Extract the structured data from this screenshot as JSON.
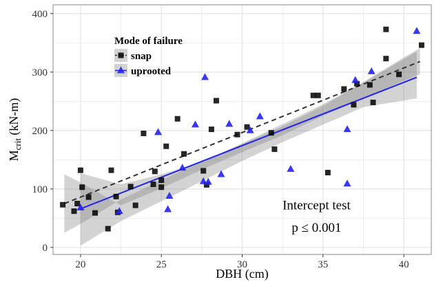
{
  "chart_data": {
    "type": "scatter",
    "xlabel": "DBH (cm)",
    "ylabel": {
      "main": "M",
      "sub": "crit",
      "unit": " (kN-m)"
    },
    "xlim": [
      18.3,
      41.7
    ],
    "ylim": [
      -12,
      415
    ],
    "x_ticks": [
      20,
      25,
      30,
      35,
      40
    ],
    "y_ticks": [
      0,
      100,
      200,
      300,
      400
    ],
    "grid": true,
    "legend": {
      "title": "Mode of failure",
      "placement": "top-left",
      "entries": [
        {
          "key": "snap",
          "label": "snap"
        },
        {
          "key": "uprooted",
          "label": "uprooted"
        }
      ]
    },
    "annotations": [
      {
        "text": "Intercept test",
        "x": 34.6,
        "y": 65
      },
      {
        "text": "p ≤ 0.001",
        "x": 34.6,
        "y": 27
      }
    ],
    "colors": {
      "snap": "#000000",
      "uprooted": "#2222ee",
      "band": "#808080",
      "snap_line": "#333333",
      "uprooted_line": "#2222ee",
      "grid": "#e4e4e4",
      "panel_border": "#8a8a8a"
    },
    "series": [
      {
        "name": "snap",
        "marker": "square",
        "points": [
          [
            18.9,
            73
          ],
          [
            19.6,
            62
          ],
          [
            19.8,
            75
          ],
          [
            20.0,
            132
          ],
          [
            20.1,
            103
          ],
          [
            20.5,
            86
          ],
          [
            20.9,
            59
          ],
          [
            21.7,
            32
          ],
          [
            21.9,
            132
          ],
          [
            22.2,
            87
          ],
          [
            22.3,
            60
          ],
          [
            23.1,
            104
          ],
          [
            23.4,
            72
          ],
          [
            23.9,
            195
          ],
          [
            24.5,
            108
          ],
          [
            24.6,
            130
          ],
          [
            25.0,
            103
          ],
          [
            25.0,
            115
          ],
          [
            25.3,
            173
          ],
          [
            26.0,
            220
          ],
          [
            26.4,
            160
          ],
          [
            27.6,
            131
          ],
          [
            27.8,
            107
          ],
          [
            28.1,
            202
          ],
          [
            28.4,
            251
          ],
          [
            29.7,
            193
          ],
          [
            30.3,
            206
          ],
          [
            31.8,
            196
          ],
          [
            32.0,
            168
          ],
          [
            34.4,
            260
          ],
          [
            34.7,
            260
          ],
          [
            35.3,
            128
          ],
          [
            36.3,
            271
          ],
          [
            36.9,
            244
          ],
          [
            37.1,
            280
          ],
          [
            37.9,
            278
          ],
          [
            38.1,
            248
          ],
          [
            38.9,
            323
          ],
          [
            38.9,
            373
          ],
          [
            39.7,
            296
          ],
          [
            41.1,
            346
          ]
        ],
        "fit": {
          "x": [
            19.0,
            41.0
          ],
          "y": [
            75,
            318
          ]
        },
        "band": [
          [
            19.0,
            25
          ],
          [
            20.0,
            40
          ],
          [
            22.5,
            82
          ],
          [
            25.0,
            115
          ],
          [
            27.5,
            147
          ],
          [
            30.0,
            177
          ],
          [
            32.5,
            207
          ],
          [
            35.0,
            242
          ],
          [
            37.5,
            283
          ],
          [
            40.0,
            325
          ],
          [
            41.0,
            341
          ],
          [
            41.0,
            296
          ],
          [
            40.0,
            285
          ],
          [
            37.5,
            255
          ],
          [
            35.0,
            225
          ],
          [
            32.5,
            192
          ],
          [
            30.0,
            163
          ],
          [
            27.5,
            133
          ],
          [
            25.0,
            101
          ],
          [
            22.5,
            72
          ],
          [
            20.0,
            111
          ],
          [
            19.0,
            125
          ]
        ]
      },
      {
        "name": "uprooted",
        "marker": "triangle",
        "points": [
          [
            20.0,
            68
          ],
          [
            22.4,
            62
          ],
          [
            24.8,
            197
          ],
          [
            25.4,
            65
          ],
          [
            25.5,
            88
          ],
          [
            26.3,
            136
          ],
          [
            27.1,
            210
          ],
          [
            27.6,
            113
          ],
          [
            27.7,
            291
          ],
          [
            27.9,
            112
          ],
          [
            28.7,
            125
          ],
          [
            29.2,
            211
          ],
          [
            30.5,
            200
          ],
          [
            31.1,
            224
          ],
          [
            33.0,
            134
          ],
          [
            36.5,
            202
          ],
          [
            36.5,
            109
          ],
          [
            37.0,
            286
          ],
          [
            38.0,
            301
          ],
          [
            40.8,
            370
          ]
        ],
        "fit": {
          "x": [
            20.0,
            40.8
          ],
          "y": [
            66,
            291
          ]
        },
        "band": [
          [
            20.0,
            3
          ],
          [
            22.5,
            45
          ],
          [
            25.0,
            79
          ],
          [
            27.5,
            113
          ],
          [
            30.0,
            148
          ],
          [
            32.5,
            180
          ],
          [
            35.0,
            210
          ],
          [
            37.5,
            240
          ],
          [
            40.8,
            255
          ],
          [
            40.8,
            335
          ],
          [
            37.5,
            282
          ],
          [
            35.0,
            245
          ],
          [
            32.5,
            211
          ],
          [
            30.0,
            178
          ],
          [
            27.5,
            146
          ],
          [
            25.0,
            125
          ],
          [
            22.5,
            108
          ],
          [
            20.0,
            127
          ]
        ]
      }
    ]
  }
}
